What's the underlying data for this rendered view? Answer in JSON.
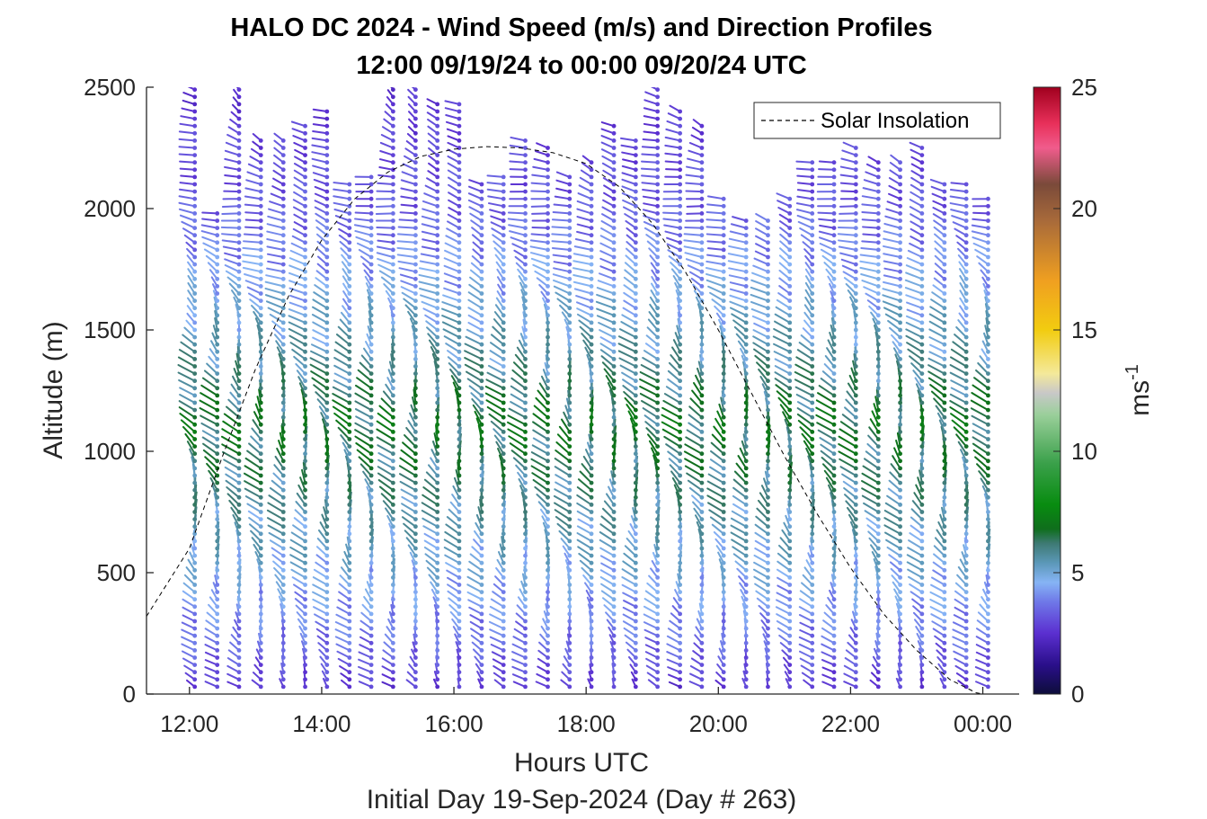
{
  "chart_data": {
    "type": "scatter",
    "title": "HALO DC 2024 - Wind Speed (m/s) and Direction Profiles",
    "subtitle": "12:00 09/19/24 to 00:00 09/20/24  UTC",
    "xlabel": "Hours UTC",
    "footer": "Initial Day 19-Sep-2024 (Day # 263)",
    "ylabel": "Altitude (m)",
    "xlim": [
      11.35,
      24.55
    ],
    "ylim": [
      0,
      2500
    ],
    "x_ticks": [
      {
        "value": 12,
        "label": "12:00"
      },
      {
        "value": 14,
        "label": "14:00"
      },
      {
        "value": 16,
        "label": "16:00"
      },
      {
        "value": 18,
        "label": "18:00"
      },
      {
        "value": 20,
        "label": "20:00"
      },
      {
        "value": 22,
        "label": "22:00"
      },
      {
        "value": 24,
        "label": "00:00"
      }
    ],
    "y_ticks": [
      {
        "value": 0,
        "label": "0"
      },
      {
        "value": 500,
        "label": "500"
      },
      {
        "value": 1000,
        "label": "1000"
      },
      {
        "value": 1500,
        "label": "1500"
      },
      {
        "value": 2000,
        "label": "2000"
      },
      {
        "value": 2500,
        "label": "2500"
      }
    ],
    "colorbar": {
      "label": "ms",
      "label_superscript": "-1",
      "range": [
        0,
        25
      ],
      "ticks": [
        {
          "value": 0,
          "label": "0"
        },
        {
          "value": 5,
          "label": "5"
        },
        {
          "value": 10,
          "label": "10"
        },
        {
          "value": 15,
          "label": "15"
        },
        {
          "value": 20,
          "label": "20"
        },
        {
          "value": 25,
          "label": "25"
        }
      ],
      "stops": [
        {
          "value": 0,
          "color": "#0d0d3a"
        },
        {
          "value": 1.2,
          "color": "#2a0f8a"
        },
        {
          "value": 2.5,
          "color": "#5b2fd0"
        },
        {
          "value": 3.8,
          "color": "#6f78e8"
        },
        {
          "value": 4.6,
          "color": "#86b4f5"
        },
        {
          "value": 5.4,
          "color": "#5b98b8"
        },
        {
          "value": 6.2,
          "color": "#3e7a74"
        },
        {
          "value": 6.8,
          "color": "#0f6e1c"
        },
        {
          "value": 7.8,
          "color": "#088c10"
        },
        {
          "value": 9.5,
          "color": "#3aa04a"
        },
        {
          "value": 11.5,
          "color": "#9acf9a"
        },
        {
          "value": 12.4,
          "color": "#c8c8c8"
        },
        {
          "value": 13.2,
          "color": "#f4e99a"
        },
        {
          "value": 15,
          "color": "#f2cc10"
        },
        {
          "value": 17,
          "color": "#f0a020"
        },
        {
          "value": 19.5,
          "color": "#a86a3a"
        },
        {
          "value": 21,
          "color": "#7a4a3a"
        },
        {
          "value": 22.5,
          "color": "#f05c8c"
        },
        {
          "value": 23.5,
          "color": "#e8305a"
        },
        {
          "value": 25,
          "color": "#a0001e"
        }
      ]
    },
    "legend": {
      "label": "Solar Insolation",
      "placement": "top-right",
      "style": "dashed black line"
    },
    "solar_insolation": {
      "x": [
        11.35,
        12.0,
        12.5,
        13.0,
        13.5,
        14.0,
        14.5,
        15.0,
        15.5,
        16.0,
        16.5,
        17.0,
        17.5,
        18.0,
        18.5,
        19.0,
        19.5,
        20.0,
        20.5,
        21.0,
        21.5,
        22.0,
        22.5,
        23.0,
        23.5,
        23.9,
        24.0,
        24.55
      ],
      "y": [
        320,
        600,
        980,
        1340,
        1640,
        1870,
        2040,
        2150,
        2215,
        2245,
        2255,
        2250,
        2230,
        2185,
        2090,
        1940,
        1740,
        1500,
        1240,
        980,
        740,
        520,
        330,
        180,
        60,
        5,
        0,
        0
      ]
    },
    "series": [
      {
        "variable": "wind speed (m/s) and direction",
        "profile_times": [
          12.08,
          12.42,
          12.75,
          13.08,
          13.42,
          13.75,
          14.08,
          14.42,
          14.75,
          15.08,
          15.42,
          15.75,
          16.08,
          16.42,
          16.75,
          17.08,
          17.42,
          17.75,
          18.08,
          18.42,
          18.75,
          19.08,
          19.42,
          19.75,
          20.08,
          20.42,
          20.75,
          21.08,
          21.42,
          21.75,
          22.08,
          22.42,
          22.75,
          23.08,
          23.42,
          23.75,
          24.08
        ],
        "profile_top_altitude_m": [
          2500,
          2000,
          2500,
          2300,
          2300,
          2350,
          2400,
          2100,
          2150,
          2500,
          2500,
          2450,
          2450,
          2100,
          2150,
          2300,
          2250,
          2150,
          2200,
          2350,
          2300,
          2500,
          2400,
          2350,
          2050,
          1950,
          1950,
          2050,
          2200,
          2200,
          2250,
          2200,
          2200,
          2250,
          2100,
          2100,
          2050
        ],
        "altitude_step_m": 30,
        "direction_deg": [
          {
            "altitude_m": 0,
            "value": 210
          },
          {
            "altitude_m": 500,
            "value": 200
          },
          {
            "altitude_m": 1000,
            "value": 200
          },
          {
            "altitude_m": 1500,
            "value": 205
          },
          {
            "altitude_m": 2000,
            "value": 250
          },
          {
            "altitude_m": 2500,
            "value": 225
          }
        ],
        "speed_ms": [
          {
            "altitude_m": 0,
            "value": 2.5
          },
          {
            "altitude_m": 200,
            "value": 3.5
          },
          {
            "altitude_m": 500,
            "value": 4.6
          },
          {
            "altitude_m": 800,
            "value": 5.6
          },
          {
            "altitude_m": 1100,
            "value": 6.4
          },
          {
            "altitude_m": 1500,
            "value": 5.0
          },
          {
            "altitude_m": 2000,
            "value": 3.2
          },
          {
            "altitude_m": 2500,
            "value": 2.5
          }
        ]
      }
    ]
  }
}
